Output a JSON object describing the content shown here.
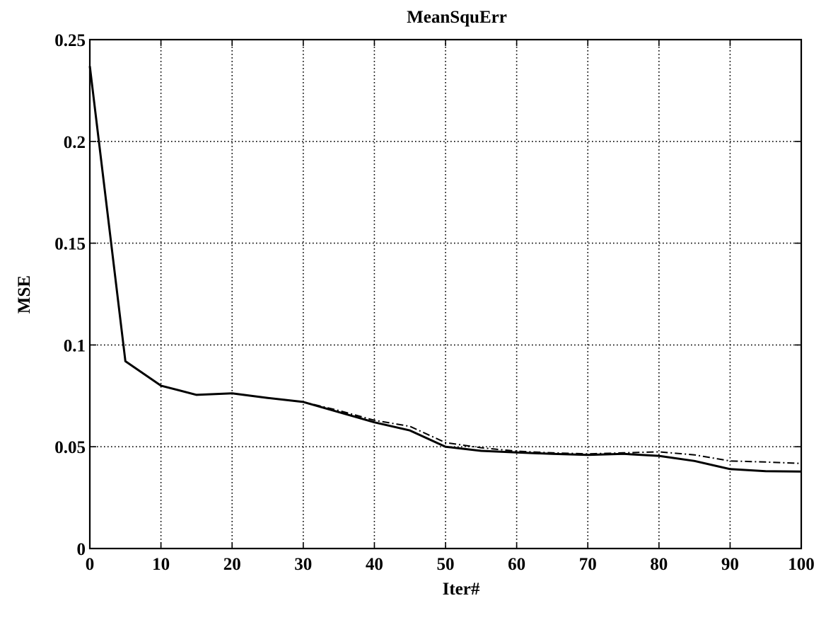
{
  "chart_data": {
    "type": "line",
    "title": "MeanSquErr",
    "xlabel": "Iter#",
    "ylabel": "MSE",
    "xlim": [
      0,
      100
    ],
    "ylim": [
      0,
      0.25
    ],
    "x_ticks": [
      0,
      10,
      20,
      30,
      40,
      50,
      60,
      70,
      80,
      90,
      100
    ],
    "y_ticks": [
      0,
      0.05,
      0.1,
      0.15,
      0.2,
      0.25
    ],
    "x_tick_labels": [
      "0",
      "10",
      "20",
      "30",
      "40",
      "50",
      "60",
      "70",
      "80",
      "90",
      "100"
    ],
    "y_tick_labels": [
      "0",
      "0.05",
      "0.1",
      "0.15",
      "0.2",
      "0.25"
    ],
    "grid": true,
    "series": [
      {
        "style": "solid",
        "x": [
          0,
          5,
          10,
          15,
          20,
          25,
          30,
          35,
          40,
          45,
          50,
          55,
          60,
          65,
          70,
          75,
          80,
          85,
          90,
          95,
          100
        ],
        "y": [
          0.237,
          0.092,
          0.08,
          0.0755,
          0.0762,
          0.074,
          0.072,
          0.067,
          0.062,
          0.058,
          0.05,
          0.048,
          0.0472,
          0.0465,
          0.046,
          0.0465,
          0.0455,
          0.043,
          0.039,
          0.038,
          0.0378
        ]
      },
      {
        "style": "dash-dot",
        "x": [
          0,
          5,
          10,
          15,
          20,
          25,
          30,
          35,
          40,
          45,
          50,
          55,
          60,
          65,
          70,
          75,
          80,
          85,
          90,
          95,
          100
        ],
        "y": [
          0.237,
          0.092,
          0.08,
          0.0755,
          0.0762,
          0.074,
          0.072,
          0.0678,
          0.063,
          0.06,
          0.052,
          0.0495,
          0.0478,
          0.047,
          0.0465,
          0.047,
          0.0475,
          0.046,
          0.043,
          0.0425,
          0.0418
        ]
      }
    ]
  }
}
